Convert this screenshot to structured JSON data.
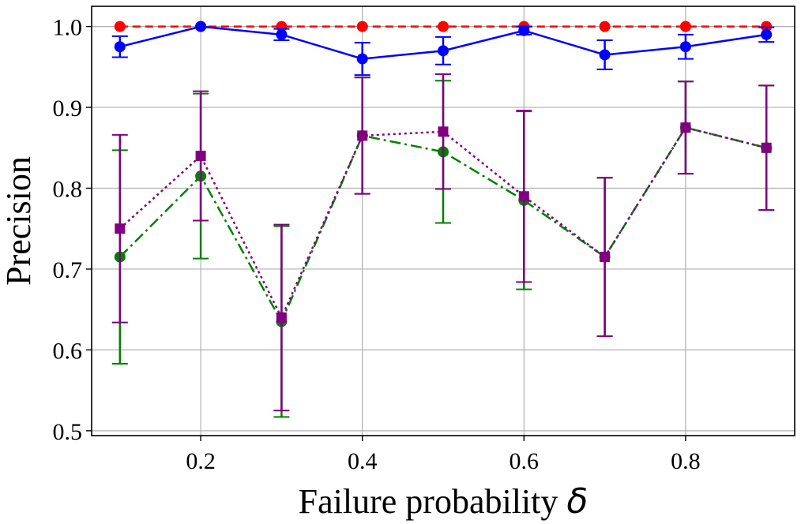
{
  "chart_data": {
    "type": "line",
    "title": "",
    "xlabel": "Failure probability",
    "xlabel_symbol": "δ",
    "ylabel": "Precision",
    "xlim": [
      0.065,
      0.935
    ],
    "ylim": [
      0.494,
      1.025
    ],
    "xticks": [
      0.2,
      0.4,
      0.6,
      0.8
    ],
    "xtick_labels": [
      "0.2",
      "0.4",
      "0.6",
      "0.8"
    ],
    "yticks": [
      0.5,
      0.6,
      0.7,
      0.8,
      0.9,
      1.0
    ],
    "ytick_labels": [
      "0.5",
      "0.6",
      "0.7",
      "0.8",
      "0.9",
      "1.0"
    ],
    "grid": true,
    "x": [
      0.1,
      0.2,
      0.3,
      0.4,
      0.5,
      0.6,
      0.7,
      0.8,
      0.9
    ],
    "series": [
      {
        "color": "#ff0000",
        "dash": "10,6",
        "marker": "circle",
        "values": [
          1.0,
          1.0,
          1.0,
          1.0,
          1.0,
          1.0,
          1.0,
          1.0,
          1.0
        ],
        "errors": null
      },
      {
        "color": "#0000ff",
        "dash": "",
        "marker": "circle",
        "values": [
          0.975,
          1.0,
          0.99,
          0.96,
          0.97,
          0.995,
          0.965,
          0.975,
          0.99
        ],
        "errors": [
          0.013,
          0.0,
          0.007,
          0.02,
          0.017,
          0.005,
          0.018,
          0.015,
          0.009
        ]
      },
      {
        "color": "#008000",
        "dash": "14,5,3,5",
        "marker": "circle",
        "values": [
          0.715,
          0.815,
          0.635,
          0.865,
          0.845,
          0.785,
          0.715,
          0.875,
          0.85
        ],
        "errors": [
          0.132,
          0.102,
          0.118,
          0.072,
          0.088,
          0.11,
          0.098,
          0.057,
          0.077
        ]
      },
      {
        "color": "#800080",
        "dash": "3,4",
        "marker": "square",
        "values": [
          0.75,
          0.84,
          0.64,
          0.865,
          0.87,
          0.79,
          0.715,
          0.875,
          0.85
        ],
        "errors": [
          0.116,
          0.08,
          0.115,
          0.072,
          0.071,
          0.106,
          0.098,
          0.057,
          0.077
        ]
      }
    ]
  }
}
